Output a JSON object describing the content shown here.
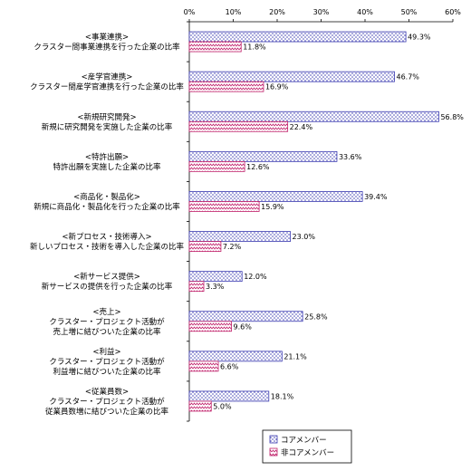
{
  "chart_data": {
    "type": "bar",
    "orientation": "horizontal",
    "xlim": [
      0,
      60
    ],
    "xticks": [
      "0%",
      "10%",
      "20%",
      "30%",
      "40%",
      "50%",
      "60%"
    ],
    "grid": false,
    "legend_position": "bottom-right",
    "categories": [
      [
        "<事業連携>",
        "クラスター間事業連携を行った企業の比率"
      ],
      [
        "<産学官連携>",
        "クラスター間産学官連携を行った企業の比率"
      ],
      [
        "<新規研究開発>",
        "新規に研究開発を実施した企業の比率"
      ],
      [
        "<特許出願>",
        "特許出願を実施した企業の比率"
      ],
      [
        "<商品化・製品化>",
        "新規に商品化・製品化を行った企業の比率"
      ],
      [
        "<新プロセス・技術導入>",
        "新しいプロセス・技術を導入した企業の比率"
      ],
      [
        "<新サービス提供>",
        "新サービスの提供を行った企業の比率"
      ],
      [
        "<売上>",
        "クラスター・プロジェクト活動が",
        "売上増に結びついた企業の比率"
      ],
      [
        "<利益>",
        "クラスター・プロジェクト活動が",
        "利益増に結びついた企業の比率"
      ],
      [
        "<従業員数>",
        "クラスター・プロジェクト活動が",
        "従業員数増に結びついた企業の比率"
      ]
    ],
    "series": [
      {
        "name": "コアメンバー",
        "color": "#3a3ab0",
        "values": [
          49.3,
          46.7,
          56.8,
          33.6,
          39.4,
          23.0,
          12.0,
          25.8,
          21.1,
          18.1
        ],
        "labels": [
          "49.3%",
          "46.7%",
          "56.8%",
          "33.6%",
          "39.4%",
          "23.0%",
          "12.0%",
          "25.8%",
          "21.1%",
          "18.1%"
        ]
      },
      {
        "name": "非コアメンバー",
        "color": "#c0206a",
        "values": [
          11.8,
          16.9,
          22.4,
          12.6,
          15.9,
          7.2,
          3.3,
          9.6,
          6.6,
          5.0
        ],
        "labels": [
          "11.8%",
          "16.9%",
          "22.4%",
          "12.6%",
          "15.9%",
          "7.2%",
          "3.3%",
          "9.6%",
          "6.6%",
          "5.0%"
        ]
      }
    ]
  }
}
